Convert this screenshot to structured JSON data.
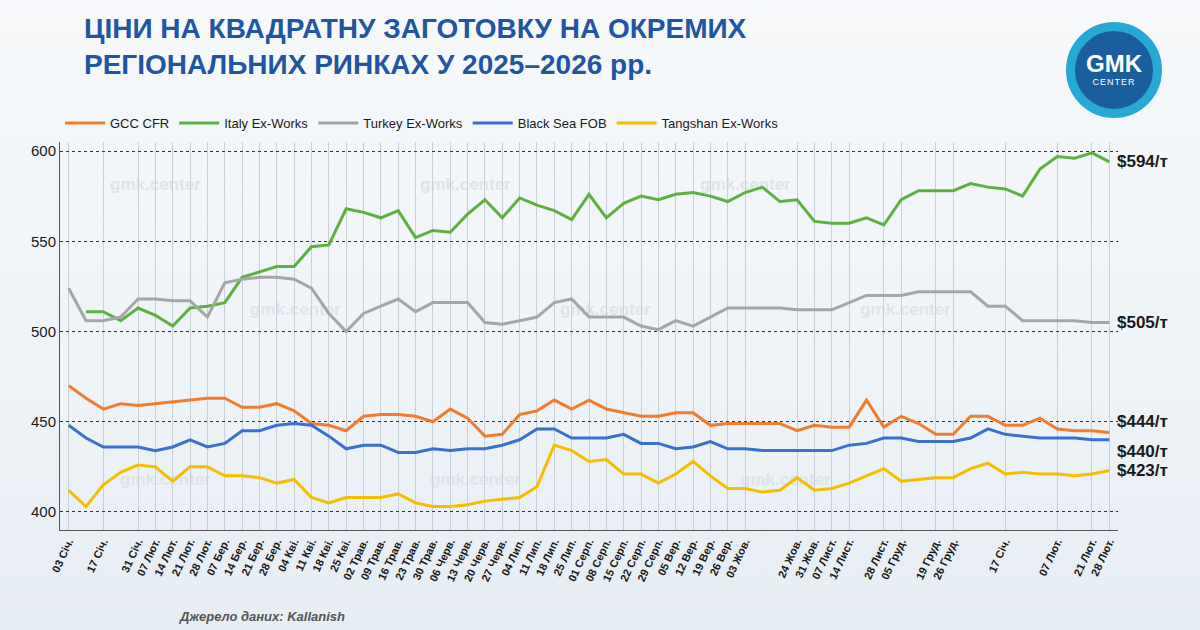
{
  "chart_data": {
    "type": "line",
    "title": "ЦІНИ НА КВАДРАТНУ ЗАГОТОВКУ НА ОКРЕМИХ\nРЕГІОНАЛЬНИХ РИНКАХ У 2025–2026 рр.",
    "source": "Джерело даних: Kallanish",
    "watermark": "gmk.center",
    "logo": [
      "GMK",
      "CENTER"
    ],
    "categories": [
      "03 Січ.",
      null,
      "17 Січ.",
      null,
      "31 Січ.",
      "07 Лют.",
      "14 Лют.",
      "21 Лют.",
      "28 Лют.",
      "07 Бер.",
      "14 Бер.",
      "21 Бер.",
      "28 Бер.",
      "04 Кві.",
      "11 Кві.",
      "18 Кві.",
      "25 Кві.",
      "02 Трав.",
      "09 Трав.",
      "16 Трав.",
      "23 Трав.",
      "30 Трав.",
      "06 Черв.",
      "13 Черв.",
      "20 Черв.",
      "27 Черв.",
      "04 Лип.",
      "11 Лип.",
      "18 Лип.",
      "25 Лип.",
      "01 Серп.",
      "08 Серп.",
      "15 Серп.",
      "22 Серп.",
      "29 Серп.",
      "05 Вер.",
      "12 Вер.",
      "19 Вер.",
      "26 Вер.",
      "03 Жов.",
      null,
      null,
      "24 Жов.",
      "31 Жов.",
      "07 Лист.",
      "14 Лист.",
      null,
      "28 Лист.",
      "05 Груд.",
      null,
      "19 Груд.",
      "26 Груд.",
      null,
      null,
      "17 Січ.",
      null,
      null,
      "07 Лют.",
      null,
      "21 Лют.",
      "28 Лют."
    ],
    "series": [
      {
        "name": "GCC CFR",
        "color": "#ef7d2d",
        "values": [
          470,
          463,
          457,
          460,
          459,
          460,
          461,
          462,
          463,
          463,
          458,
          458,
          460,
          456,
          449,
          448,
          445,
          453,
          454,
          454,
          453,
          450,
          457,
          452,
          442,
          443,
          454,
          456,
          462,
          457,
          462,
          457,
          455,
          453,
          453,
          455,
          455,
          448,
          449,
          449,
          449,
          449,
          445,
          448,
          447,
          447,
          462,
          447,
          453,
          449,
          443,
          443,
          453,
          453,
          448,
          448,
          452,
          446,
          445,
          445,
          444
        ],
        "value_labels": [
          null,
          null,
          null,
          null,
          null,
          null,
          null,
          null,
          null,
          null,
          null,
          null,
          null,
          null,
          null,
          null,
          null,
          null,
          null,
          null,
          null,
          null,
          null,
          null,
          null,
          null,
          null,
          null,
          null,
          null,
          null,
          null,
          null,
          null,
          null,
          null,
          null,
          null,
          null,
          null,
          null,
          null,
          null,
          null,
          null,
          null,
          null,
          null,
          null,
          null,
          null,
          null,
          null,
          null,
          null,
          null,
          null,
          null,
          null,
          null,
          "$444/т"
        ]
      },
      {
        "name": "Italy Ex-Works",
        "color": "#5eb041",
        "values": [
          null,
          511,
          511,
          506,
          513,
          509,
          503,
          513,
          514,
          516,
          530,
          533,
          536,
          536,
          547,
          548,
          568,
          566,
          563,
          567,
          552,
          556,
          555,
          565,
          573,
          563,
          574,
          570,
          567,
          562,
          576,
          563,
          571,
          575,
          573,
          576,
          577,
          575,
          572,
          577,
          580,
          572,
          573,
          561,
          560,
          560,
          563,
          559,
          573,
          578,
          578,
          578,
          582,
          580,
          579,
          575,
          590,
          597,
          596,
          599,
          594
        ],
        "value_labels": [
          null,
          null,
          null,
          null,
          null,
          null,
          null,
          null,
          null,
          null,
          null,
          null,
          null,
          null,
          null,
          null,
          null,
          null,
          null,
          null,
          null,
          null,
          null,
          null,
          null,
          null,
          null,
          null,
          null,
          null,
          null,
          null,
          null,
          null,
          null,
          null,
          null,
          null,
          null,
          null,
          null,
          null,
          null,
          null,
          null,
          null,
          null,
          null,
          null,
          null,
          null,
          null,
          null,
          null,
          null,
          null,
          null,
          null,
          null,
          null,
          "$594/т"
        ]
      },
      {
        "name": "Turkey Ex-Works",
        "color": "#a6a6a6",
        "values": [
          524,
          506,
          506,
          508,
          518,
          518,
          517,
          517,
          508,
          527,
          529,
          530,
          530,
          529,
          524,
          510,
          500,
          510,
          514,
          518,
          511,
          516,
          516,
          516,
          505,
          504,
          506,
          508,
          516,
          518,
          508,
          508,
          508,
          503,
          501,
          506,
          503,
          508,
          513,
          513,
          513,
          513,
          512,
          512,
          512,
          516,
          520,
          520,
          520,
          522,
          522,
          522,
          522,
          514,
          514,
          506,
          506,
          506,
          506,
          505,
          505
        ],
        "value_labels": [
          null,
          null,
          null,
          null,
          null,
          null,
          null,
          null,
          null,
          null,
          null,
          null,
          null,
          null,
          null,
          null,
          null,
          null,
          null,
          null,
          null,
          null,
          null,
          null,
          null,
          null,
          null,
          null,
          null,
          null,
          null,
          null,
          null,
          null,
          null,
          null,
          null,
          null,
          null,
          null,
          null,
          null,
          null,
          null,
          null,
          null,
          null,
          null,
          null,
          null,
          null,
          null,
          null,
          null,
          null,
          null,
          null,
          null,
          null,
          null,
          "$505/т"
        ]
      },
      {
        "name": "Black Sea FOB",
        "color": "#3b6fd0",
        "values": [
          448,
          441,
          436,
          436,
          436,
          434,
          436,
          440,
          436,
          438,
          445,
          445,
          448,
          449,
          448,
          442,
          435,
          437,
          437,
          433,
          433,
          435,
          434,
          435,
          435,
          437,
          440,
          446,
          446,
          441,
          441,
          441,
          443,
          438,
          438,
          435,
          436,
          439,
          435,
          435,
          434,
          434,
          434,
          434,
          434,
          437,
          438,
          441,
          441,
          439,
          439,
          439,
          441,
          446,
          443,
          442,
          441,
          441,
          441,
          440,
          440
        ],
        "value_labels": [
          null,
          null,
          null,
          null,
          null,
          null,
          null,
          null,
          null,
          null,
          null,
          null,
          null,
          null,
          null,
          null,
          null,
          null,
          null,
          null,
          null,
          null,
          null,
          null,
          null,
          null,
          null,
          null,
          null,
          null,
          null,
          null,
          null,
          null,
          null,
          null,
          null,
          null,
          null,
          null,
          null,
          null,
          null,
          null,
          null,
          null,
          null,
          null,
          null,
          null,
          null,
          null,
          null,
          null,
          null,
          null,
          null,
          null,
          null,
          null,
          "$440/т"
        ]
      },
      {
        "name": "Tangshan Ex-Works",
        "color": "#f5bf00",
        "values": [
          412,
          403,
          415,
          422,
          426,
          425,
          417,
          425,
          425,
          420,
          420,
          419,
          416,
          418,
          408,
          405,
          408,
          408,
          408,
          410,
          405,
          403,
          403,
          404,
          406,
          407,
          408,
          414,
          437,
          434,
          428,
          429,
          421,
          421,
          416,
          421,
          428,
          420,
          413,
          413,
          411,
          412,
          419,
          412,
          413,
          416,
          420,
          424,
          417,
          418,
          419,
          419,
          424,
          427,
          421,
          422,
          421,
          421,
          420,
          421,
          423
        ],
        "value_labels": [
          null,
          null,
          null,
          null,
          null,
          null,
          null,
          null,
          null,
          null,
          null,
          null,
          null,
          null,
          null,
          null,
          null,
          null,
          null,
          null,
          null,
          null,
          null,
          null,
          null,
          null,
          null,
          null,
          null,
          null,
          null,
          null,
          null,
          null,
          null,
          null,
          null,
          null,
          null,
          null,
          null,
          null,
          null,
          null,
          null,
          null,
          null,
          null,
          null,
          null,
          null,
          null,
          null,
          null,
          null,
          null,
          null,
          null,
          null,
          null,
          "$423/т"
        ]
      }
    ],
    "ylim": [
      390,
      605
    ],
    "yticks": [
      400,
      450,
      500,
      550,
      600
    ],
    "grid": true,
    "legend": "top"
  }
}
